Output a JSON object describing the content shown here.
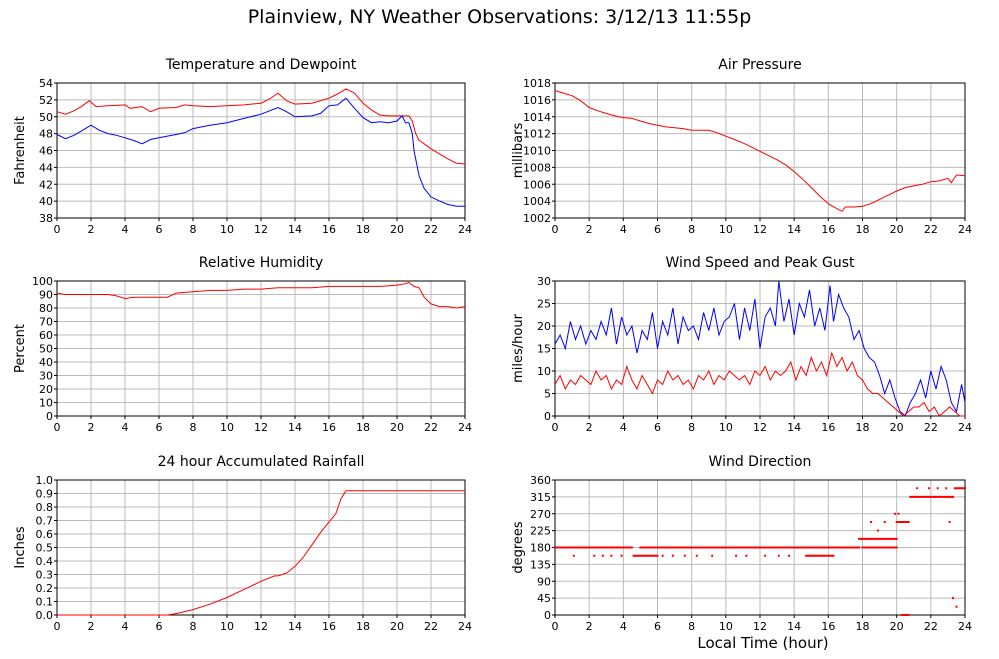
{
  "page": {
    "title": "Plainview, NY Weather Observations: 3/12/13 11:55p",
    "xlabel": "Local Time (hour)"
  },
  "chart_data": [
    {
      "id": "temp",
      "type": "line",
      "title": "Temperature and Dewpoint",
      "ylabel": "Fahrenheit",
      "xlim": [
        0,
        24
      ],
      "ylim": [
        38,
        54
      ],
      "xticks": [
        0,
        2,
        4,
        6,
        8,
        10,
        12,
        14,
        16,
        18,
        20,
        22,
        24
      ],
      "yticks": [
        38,
        40,
        42,
        44,
        46,
        48,
        50,
        52,
        54
      ],
      "grid": true,
      "series": [
        {
          "color": "#ff0000",
          "x": [
            0,
            0.5,
            1,
            1.5,
            1.9,
            2.3,
            3,
            4,
            4.3,
            5,
            5.5,
            6,
            7,
            7.5,
            8,
            9,
            10,
            11,
            12,
            12.5,
            13,
            13.5,
            14,
            15,
            16,
            16.5,
            17,
            17.3,
            17.5,
            18,
            18.5,
            19,
            19.5,
            20,
            20.5,
            20.7,
            20.9,
            21.1,
            21.3,
            21.6,
            22,
            22.5,
            23,
            23.5,
            24
          ],
          "y": [
            50.6,
            50.3,
            50.7,
            51.3,
            51.9,
            51.2,
            51.3,
            51.4,
            51.0,
            51.2,
            50.6,
            51.0,
            51.1,
            51.4,
            51.3,
            51.2,
            51.3,
            51.4,
            51.6,
            52.1,
            52.8,
            51.9,
            51.5,
            51.6,
            52.2,
            52.7,
            53.3,
            53.0,
            52.8,
            51.6,
            50.8,
            50.2,
            50.1,
            50.1,
            50.1,
            50.1,
            49.5,
            48.0,
            47.2,
            46.8,
            46.2,
            45.6,
            45.0,
            44.5,
            44.4
          ]
        },
        {
          "color": "#0000ff",
          "x": [
            0,
            0.5,
            1,
            1.5,
            2,
            2.5,
            3,
            3.5,
            4,
            4.5,
            5,
            5.5,
            6,
            7,
            7.5,
            8,
            9,
            10,
            11,
            12,
            13,
            13.5,
            14,
            15,
            15.5,
            16,
            16.5,
            17,
            17.5,
            18,
            18.5,
            19,
            19.5,
            20,
            20.3,
            20.5,
            20.7,
            20.9,
            21,
            21.3,
            21.6,
            22,
            22.5,
            23,
            23.5,
            24
          ],
          "y": [
            47.9,
            47.4,
            47.8,
            48.4,
            49.0,
            48.4,
            48.0,
            47.8,
            47.5,
            47.2,
            46.8,
            47.3,
            47.5,
            47.9,
            48.1,
            48.6,
            49.0,
            49.3,
            49.8,
            50.3,
            51.1,
            50.6,
            50.0,
            50.1,
            50.4,
            51.3,
            51.4,
            52.2,
            51.0,
            49.9,
            49.3,
            49.4,
            49.3,
            49.5,
            50.1,
            49.3,
            49.3,
            48.0,
            46.0,
            43.0,
            41.5,
            40.5,
            40.0,
            39.6,
            39.4,
            39.4
          ]
        }
      ]
    },
    {
      "id": "pressure",
      "type": "line",
      "title": "Air Pressure",
      "ylabel": "millibars",
      "xlim": [
        0,
        24
      ],
      "ylim": [
        1002,
        1018
      ],
      "xticks": [
        0,
        2,
        4,
        6,
        8,
        10,
        12,
        14,
        16,
        18,
        20,
        22,
        24
      ],
      "yticks": [
        1002,
        1004,
        1006,
        1008,
        1010,
        1012,
        1014,
        1016,
        1018
      ],
      "grid": true,
      "series": [
        {
          "color": "#ff0000",
          "x": [
            0,
            0.5,
            1,
            1.5,
            2,
            2.5,
            3,
            3.5,
            4,
            4.5,
            5,
            5.5,
            6,
            6.5,
            7,
            7.5,
            8,
            8.5,
            9,
            9.5,
            10,
            10.5,
            11,
            11.5,
            12,
            12.5,
            13,
            13.5,
            14,
            14.5,
            15,
            15.5,
            16,
            16.5,
            16.8,
            17,
            17.5,
            18,
            18.5,
            19,
            19.5,
            20,
            20.5,
            21,
            21.5,
            22,
            22.5,
            23,
            23.2,
            23.5,
            24
          ],
          "y": [
            1017.1,
            1016.8,
            1016.5,
            1015.9,
            1015.1,
            1014.7,
            1014.4,
            1014.1,
            1013.9,
            1013.8,
            1013.5,
            1013.2,
            1013.0,
            1012.8,
            1012.7,
            1012.6,
            1012.4,
            1012.4,
            1012.4,
            1012.1,
            1011.7,
            1011.3,
            1010.9,
            1010.4,
            1009.9,
            1009.4,
            1008.9,
            1008.3,
            1007.5,
            1006.6,
            1005.6,
            1004.6,
            1003.7,
            1003.1,
            1002.8,
            1003.3,
            1003.3,
            1003.4,
            1003.7,
            1004.2,
            1004.7,
            1005.2,
            1005.6,
            1005.8,
            1006.0,
            1006.3,
            1006.4,
            1006.7,
            1006.2,
            1007.1,
            1007.0
          ]
        }
      ]
    },
    {
      "id": "humidity",
      "type": "line",
      "title": "Relative Humidity",
      "ylabel": "Percent",
      "xlim": [
        0,
        24
      ],
      "ylim": [
        0,
        100
      ],
      "xticks": [
        0,
        2,
        4,
        6,
        8,
        10,
        12,
        14,
        16,
        18,
        20,
        22,
        24
      ],
      "yticks": [
        0,
        10,
        20,
        30,
        40,
        50,
        60,
        70,
        80,
        90,
        100
      ],
      "grid": true,
      "series": [
        {
          "color": "#ff0000",
          "x": [
            0,
            0.5,
            1,
            2,
            3,
            3.5,
            4,
            4.5,
            5,
            6,
            6.5,
            7,
            8,
            9,
            10,
            11,
            12,
            13,
            14,
            15,
            16,
            17,
            18,
            19,
            20,
            20.5,
            20.7,
            21,
            21.3,
            21.6,
            22,
            22.5,
            23,
            23.5,
            24
          ],
          "y": [
            91,
            90,
            90,
            90,
            90,
            89,
            87,
            88,
            88,
            88,
            88,
            91,
            92,
            93,
            93,
            94,
            94,
            95,
            95,
            95,
            96,
            96,
            96,
            96,
            97,
            98,
            99,
            96,
            95,
            88,
            83,
            81,
            81,
            80,
            81
          ]
        }
      ]
    },
    {
      "id": "wind",
      "type": "line",
      "title": "Wind Speed and Peak Gust",
      "ylabel": "miles/hour",
      "xlim": [
        0,
        24
      ],
      "ylim": [
        0,
        30
      ],
      "xticks": [
        0,
        2,
        4,
        6,
        8,
        10,
        12,
        14,
        16,
        18,
        20,
        22,
        24
      ],
      "yticks": [
        0,
        5,
        10,
        15,
        20,
        25,
        30
      ],
      "grid": true,
      "series": [
        {
          "color": "#0000ff",
          "x": [
            0,
            0.3,
            0.6,
            0.9,
            1.2,
            1.5,
            1.8,
            2.1,
            2.4,
            2.7,
            3.0,
            3.3,
            3.6,
            3.9,
            4.2,
            4.5,
            4.8,
            5.1,
            5.4,
            5.7,
            6.0,
            6.3,
            6.6,
            6.9,
            7.2,
            7.5,
            7.8,
            8.1,
            8.4,
            8.7,
            9.0,
            9.3,
            9.6,
            9.9,
            10.2,
            10.5,
            10.8,
            11.1,
            11.4,
            11.7,
            12.0,
            12.3,
            12.6,
            12.9,
            13.1,
            13.4,
            13.7,
            14.0,
            14.3,
            14.6,
            14.9,
            15.2,
            15.5,
            15.8,
            16.1,
            16.3,
            16.6,
            16.9,
            17.2,
            17.5,
            17.8,
            18.1,
            18.4,
            18.7,
            19.0,
            19.3,
            19.6,
            19.9,
            20.2,
            20.5,
            20.8,
            21.1,
            21.4,
            21.7,
            22.0,
            22.3,
            22.6,
            22.9,
            23.2,
            23.5,
            23.8,
            24
          ],
          "y": [
            16,
            18,
            15,
            21,
            17,
            20,
            16,
            19,
            17,
            21,
            18,
            24,
            16,
            22,
            18,
            20,
            14,
            19,
            17,
            23,
            15,
            21,
            18,
            24,
            16,
            22,
            19,
            20,
            17,
            23,
            19,
            24,
            18,
            21,
            22,
            25,
            17,
            24,
            19,
            26,
            15,
            22,
            24,
            20,
            30,
            21,
            26,
            18,
            25,
            22,
            28,
            20,
            24,
            19,
            29,
            21,
            27,
            24,
            22,
            17,
            19,
            15,
            13,
            12,
            9,
            5,
            8,
            4,
            1,
            0,
            3,
            5,
            8,
            4,
            10,
            6,
            11,
            8,
            3,
            1,
            7,
            3
          ]
        },
        {
          "color": "#ff0000",
          "x": [
            0,
            0.3,
            0.6,
            0.9,
            1.2,
            1.5,
            1.8,
            2.1,
            2.4,
            2.7,
            3.0,
            3.3,
            3.6,
            3.9,
            4.2,
            4.5,
            4.8,
            5.1,
            5.4,
            5.7,
            6.0,
            6.3,
            6.6,
            6.9,
            7.2,
            7.5,
            7.8,
            8.1,
            8.4,
            8.7,
            9.0,
            9.3,
            9.6,
            9.9,
            10.2,
            10.5,
            10.8,
            11.1,
            11.4,
            11.7,
            12.0,
            12.3,
            12.6,
            12.9,
            13.2,
            13.5,
            13.8,
            14.1,
            14.4,
            14.7,
            15.0,
            15.3,
            15.6,
            15.9,
            16.2,
            16.5,
            16.8,
            17.1,
            17.4,
            17.7,
            18.0,
            18.3,
            18.6,
            18.9,
            19.2,
            19.5,
            19.8,
            20.1,
            20.4,
            20.7,
            21.0,
            21.3,
            21.6,
            21.9,
            22.2,
            22.5,
            22.8,
            23.1,
            23.4,
            23.7,
            24
          ],
          "y": [
            7,
            9,
            6,
            8,
            7,
            9,
            8,
            7,
            10,
            8,
            9,
            6,
            8,
            7,
            11,
            8,
            6,
            9,
            7,
            5,
            8,
            7,
            10,
            8,
            9,
            7,
            8,
            6,
            9,
            8,
            10,
            7,
            9,
            8,
            10,
            9,
            8,
            9,
            7,
            10,
            9,
            11,
            8,
            10,
            9,
            10,
            12,
            8,
            11,
            9,
            13,
            10,
            12,
            9,
            14,
            11,
            13,
            10,
            12,
            9,
            8,
            6,
            5,
            5,
            4,
            3,
            2,
            1,
            0,
            1,
            2,
            2,
            3,
            1,
            2,
            0,
            1,
            2,
            1,
            0,
            0
          ]
        }
      ]
    },
    {
      "id": "rain",
      "type": "line",
      "title": "24 hour Accumulated Rainfall",
      "ylabel": "Inches",
      "xlim": [
        0,
        24
      ],
      "ylim": [
        0,
        1.0
      ],
      "xticks": [
        0,
        2,
        4,
        6,
        8,
        10,
        12,
        14,
        16,
        18,
        20,
        22,
        24
      ],
      "yticks": [
        0.0,
        0.1,
        0.2,
        0.3,
        0.4,
        0.5,
        0.6,
        0.7,
        0.8,
        0.9,
        1.0
      ],
      "grid": true,
      "series": [
        {
          "color": "#ff0000",
          "x": [
            0,
            6.5,
            7,
            8,
            9,
            10,
            11,
            12,
            12.8,
            13,
            13.5,
            14,
            14.5,
            15,
            15.5,
            16,
            16.4,
            16.7,
            17,
            24
          ],
          "y": [
            0,
            0,
            0.01,
            0.04,
            0.08,
            0.13,
            0.19,
            0.25,
            0.29,
            0.29,
            0.31,
            0.36,
            0.43,
            0.52,
            0.61,
            0.69,
            0.75,
            0.86,
            0.92,
            0.92
          ]
        }
      ]
    },
    {
      "id": "direction",
      "type": "scatter",
      "title": "Wind Direction",
      "ylabel": "degrees",
      "xlim": [
        0,
        24
      ],
      "ylim": [
        0,
        360
      ],
      "xticks": [
        0,
        2,
        4,
        6,
        8,
        10,
        12,
        14,
        16,
        18,
        20,
        22,
        24
      ],
      "yticks": [
        0,
        45,
        90,
        135,
        180,
        225,
        270,
        315,
        360
      ],
      "grid": true,
      "segments": [
        {
          "x0": 0.0,
          "x1": 4.5,
          "y": 180
        },
        {
          "x0": 5.0,
          "x1": 17.8,
          "y": 180
        },
        {
          "x0": 18.0,
          "x1": 20.0,
          "y": 180
        },
        {
          "x0": 4.6,
          "x1": 6.0,
          "y": 158
        },
        {
          "x0": 14.7,
          "x1": 16.3,
          "y": 158
        },
        {
          "x0": 17.8,
          "x1": 20.0,
          "y": 203
        },
        {
          "x0": 20.0,
          "x1": 20.7,
          "y": 248
        },
        {
          "x0": 20.8,
          "x1": 23.3,
          "y": 315
        },
        {
          "x0": 23.4,
          "x1": 24.0,
          "y": 338
        },
        {
          "x0": 20.3,
          "x1": 20.7,
          "y": 0
        }
      ],
      "points": {
        "x": [
          1.1,
          2.3,
          2.8,
          3.3,
          3.9,
          6.3,
          6.9,
          7.6,
          8.3,
          9.2,
          10.6,
          11.2,
          12.3,
          13.1,
          13.7,
          18.9,
          19.3,
          19.9,
          20.1,
          21.2,
          21.9,
          22.4,
          22.9,
          23.1,
          23.3,
          23.5,
          18.5
        ],
        "y": [
          158,
          158,
          158,
          158,
          158,
          158,
          158,
          158,
          158,
          158,
          158,
          158,
          158,
          158,
          158,
          225,
          248,
          270,
          270,
          338,
          338,
          338,
          338,
          248,
          45,
          22,
          248
        ]
      }
    }
  ]
}
